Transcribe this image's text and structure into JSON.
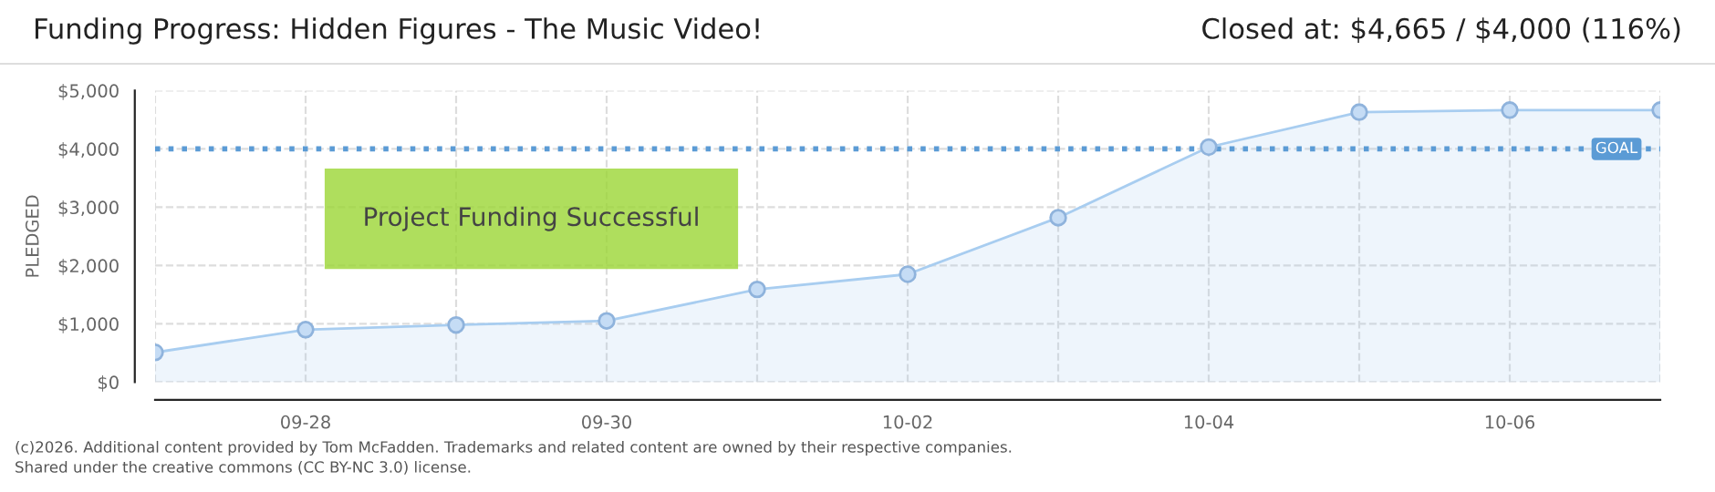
{
  "chart_data": {
    "type": "area",
    "title": "Funding Progress: Hidden Figures - The Music Video!",
    "subtitle": "Closed at: $4,665 / $4,000 (116%)",
    "ylabel": "PLEDGED",
    "categories": [
      null,
      "09-28",
      null,
      "09-30",
      null,
      "10-02",
      null,
      "10-04",
      null,
      "10-06",
      null
    ],
    "series": [
      {
        "color": "#a8cdf0",
        "values": [
          510,
          900,
          980,
          1050,
          1590,
          1850,
          2820,
          4030,
          4630,
          4665,
          4665
        ]
      }
    ],
    "ylim": [
      0,
      5000
    ],
    "yticks": [
      {
        "value": 0,
        "label": "$0"
      },
      {
        "value": 1000,
        "label": "$1,000"
      },
      {
        "value": 2000,
        "label": "$2,000"
      },
      {
        "value": 3000,
        "label": "$3,000"
      },
      {
        "value": 4000,
        "label": "$4,000"
      },
      {
        "value": 5000,
        "label": "$5,000"
      }
    ],
    "ref_lines": [
      {
        "axis": "y",
        "value": 4000,
        "label": "GOAL",
        "color": "#5b9bd5",
        "line_style": "dotted"
      }
    ],
    "annotations": [
      "Project Funding Successful",
      "(c)2026. Additional content provided by Tom McFadden. Trademarks and related content are owned by their respective companies.",
      "Shared under the creative commons (CC BY-NC 3.0) license."
    ],
    "grid": true,
    "legend": false,
    "marker": "circle",
    "line_style": "solid"
  }
}
